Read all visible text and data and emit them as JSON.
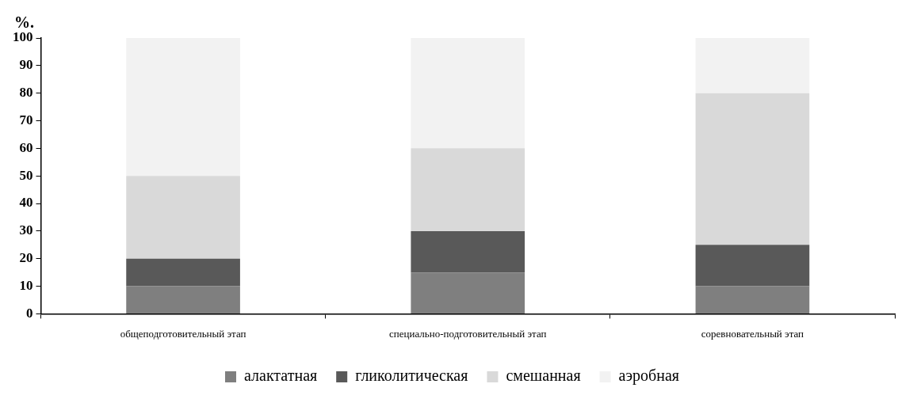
{
  "chart_data": {
    "type": "bar",
    "stacked": true,
    "ylabel": "%.",
    "categories": [
      "общеподготовительный этап",
      "специально-подготовительный этап",
      "соревновательный этап"
    ],
    "series": [
      {
        "name": "алактатная",
        "color": "#7f7f7f",
        "values": [
          10,
          15,
          10
        ]
      },
      {
        "name": "гликолитическая",
        "color": "#595959",
        "values": [
          10,
          15,
          15
        ]
      },
      {
        "name": "смешанная",
        "color": "#d9d9d9",
        "values": [
          30,
          30,
          55
        ]
      },
      {
        "name": "аэробная",
        "color": "#f2f2f2",
        "values": [
          50,
          40,
          20
        ]
      }
    ],
    "ylim": [
      0,
      100
    ],
    "yticks": [
      0,
      10,
      20,
      30,
      40,
      50,
      60,
      70,
      80,
      90,
      100
    ],
    "grid": false,
    "legend": "bottom"
  }
}
